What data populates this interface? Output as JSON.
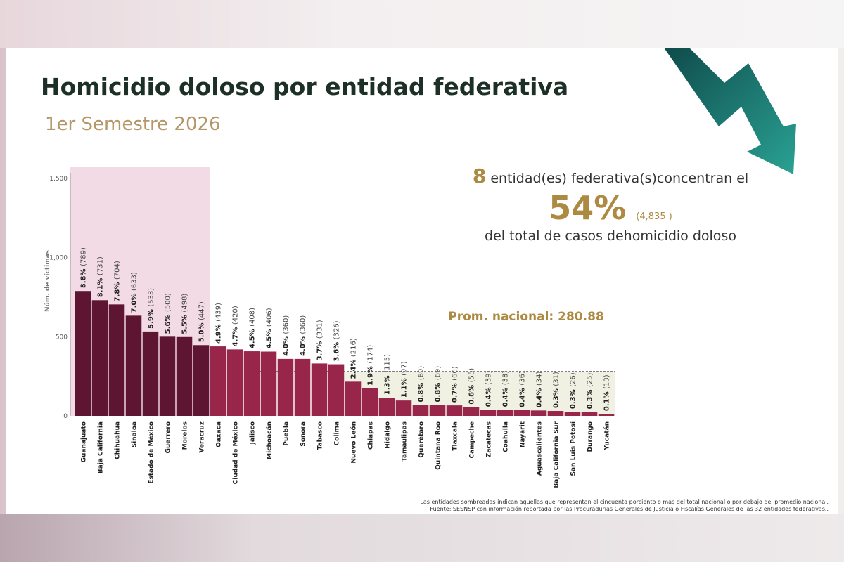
{
  "title": "Homicidio doloso por entidad federativa",
  "subtitle": "1er Semestre 2026",
  "summary": {
    "count": "8",
    "text1": "entidad(es) federativa(s)concentran el",
    "percent": "54%",
    "total": "(4,835 )",
    "text2": "del total de casos dehomicidio doloso"
  },
  "average_label": "Prom. nacional: 280.88",
  "footnote1": "Las entidades sombreadas indican aquellas que representan el cincuenta porciento o más del total nacional o por debajo del promedio nacional.",
  "footnote2": "Fuente: SESNSP con información reportada por las Procuradurías Generales de Justicia o Fiscalías Generales de las 32 entidades federativas..",
  "colors": {
    "title": "#1c3027",
    "gold": "#ad8a42",
    "bar_top": "#5e1532",
    "bar_mid": "#98254a",
    "highlight": "#f2dbe5",
    "below_avg": "#f1f1e3",
    "arrow_dark": "#0f4b4b",
    "arrow_light": "#2aa294"
  },
  "chart_data": {
    "type": "bar",
    "ylabel": "Núm. de víctimas",
    "ylim": [
      0,
      1500
    ],
    "yticks": [
      0,
      500,
      1000,
      1500
    ],
    "ytick_labels": [
      "0",
      "500",
      "1,000",
      "1,500"
    ],
    "average": 280.88,
    "top_concentration_count": 8,
    "categories": [
      "Guanajuato",
      "Baja California",
      "Chihuahua",
      "Sinaloa",
      "Estado de México",
      "Guerrero",
      "Morelos",
      "Veracruz",
      "Oaxaca",
      "Ciudad de México",
      "Jalisco",
      "Michoacán",
      "Puebla",
      "Sonora",
      "Tabasco",
      "Colima",
      "Nuevo León",
      "Chiapas",
      "Hidalgo",
      "Tamaulipas",
      "Querétaro",
      "Quintana Roo",
      "Tlaxcala",
      "Campeche",
      "Zacatecas",
      "Coahuila",
      "Nayarit",
      "Aguascalientes",
      "Baja California Sur",
      "San Luis Potosí",
      "Durango",
      "Yucatán"
    ],
    "values": [
      789,
      731,
      704,
      633,
      533,
      500,
      498,
      447,
      439,
      420,
      408,
      406,
      360,
      360,
      331,
      326,
      216,
      174,
      115,
      97,
      69,
      69,
      66,
      55,
      39,
      38,
      36,
      34,
      31,
      26,
      25,
      13
    ],
    "percents": [
      "8.8%",
      "8.1%",
      "7.8%",
      "7.0%",
      "5.9%",
      "5.6%",
      "5.5%",
      "5.0%",
      "4.9%",
      "4.7%",
      "4.5%",
      "4.5%",
      "4.0%",
      "4.0%",
      "3.7%",
      "3.6%",
      "2.4%",
      "1.9%",
      "1.3%",
      "1.1%",
      "0.8%",
      "0.8%",
      "0.7%",
      "0.6%",
      "0.4%",
      "0.4%",
      "0.4%",
      "0.4%",
      "0.3%",
      "0.3%",
      "0.3%",
      "0.1%"
    ],
    "counts": [
      "(789)",
      "(731)",
      "(704)",
      "(633)",
      "(533)",
      "(500)",
      "(498)",
      "(447)",
      "(439)",
      "(420)",
      "(408)",
      "(406)",
      "(360)",
      "(360)",
      "(331)",
      "(326)",
      "(216)",
      "(174)",
      "(115)",
      "(97)",
      "(69)",
      "(69)",
      "(66)",
      "(55)",
      "(39)",
      "(38)",
      "(36)",
      "(34)",
      "(31)",
      "(26)",
      "(25)",
      "(13)"
    ]
  }
}
